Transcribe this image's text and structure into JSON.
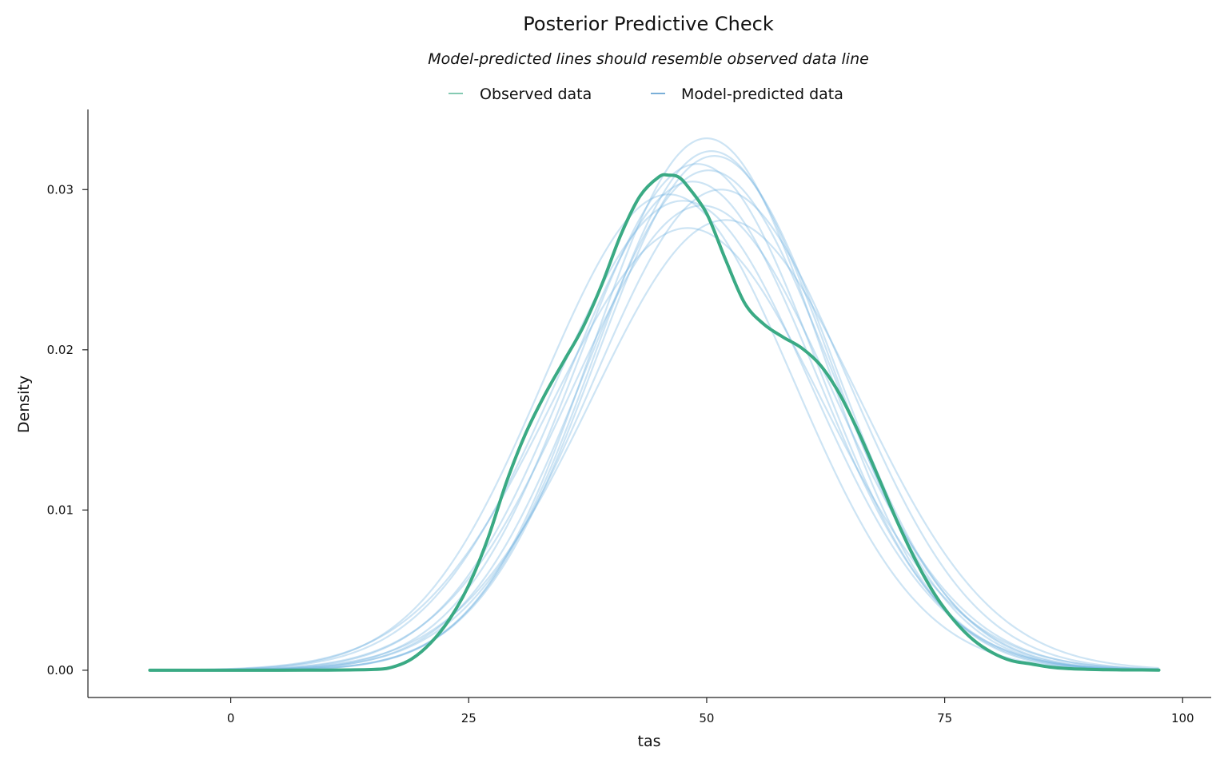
{
  "chart_data": {
    "type": "line",
    "title": "Posterior Predictive Check",
    "subtitle": "Model-predicted lines should resemble observed data line",
    "xlabel": "tas",
    "ylabel": "Density",
    "xlim": [
      -15,
      103
    ],
    "ylim": [
      -0.0017,
      0.035
    ],
    "xticks": [
      0,
      25,
      50,
      75,
      100
    ],
    "xtick_labels": [
      "0",
      "25",
      "50",
      "75",
      "100"
    ],
    "yticks": [
      0.0,
      0.01,
      0.02,
      0.03
    ],
    "ytick_labels": [
      "0.00",
      "0.01",
      "0.02",
      "0.03"
    ],
    "grid": false,
    "legend_position": "top-center",
    "legend": [
      {
        "label": "Observed data",
        "color": "#3aaa84"
      },
      {
        "label": "Model-predicted data",
        "color": "#2b7fc0"
      }
    ],
    "observed": {
      "name": "Observed data",
      "color": "#3aaa84",
      "x": [
        -8.5,
        0,
        5,
        10,
        15,
        17,
        19,
        21,
        23,
        25,
        27,
        29,
        31,
        33,
        35,
        37,
        39,
        41,
        43,
        45,
        46,
        47,
        48,
        50,
        52,
        54,
        56,
        58,
        60,
        62,
        64,
        66,
        68,
        70,
        72,
        74,
        76,
        78,
        80,
        82,
        84,
        86,
        88,
        90,
        92,
        95,
        97.5
      ],
      "y": [
        0.0,
        0.0,
        0.0,
        1e-05,
        5e-05,
        0.0002,
        0.0007,
        0.0017,
        0.0032,
        0.0053,
        0.0082,
        0.0118,
        0.0148,
        0.0172,
        0.0193,
        0.0214,
        0.0241,
        0.0272,
        0.0296,
        0.0308,
        0.0309,
        0.0308,
        0.0302,
        0.0285,
        0.0256,
        0.0229,
        0.0216,
        0.0208,
        0.0201,
        0.019,
        0.0172,
        0.0148,
        0.0121,
        0.0093,
        0.0068,
        0.0047,
        0.0031,
        0.0019,
        0.0011,
        0.0006,
        0.0004,
        0.0002,
        0.0001,
        6e-05,
        3e-05,
        2e-05,
        1e-05
      ]
    },
    "predicted": {
      "name": "Model-predicted data",
      "color": "#6fb3df",
      "draws": [
        {
          "mu": 50.0,
          "sigma": 12.0,
          "amp": 0.0332
        },
        {
          "mu": 50.5,
          "sigma": 12.3,
          "amp": 0.0324
        },
        {
          "mu": 49.0,
          "sigma": 12.6,
          "amp": 0.0316
        },
        {
          "mu": 50.8,
          "sigma": 12.4,
          "amp": 0.0321
        },
        {
          "mu": 48.5,
          "sigma": 13.0,
          "amp": 0.0305
        },
        {
          "mu": 51.5,
          "sigma": 13.3,
          "amp": 0.03
        },
        {
          "mu": 47.5,
          "sigma": 13.5,
          "amp": 0.0293
        },
        {
          "mu": 49.5,
          "sigma": 13.6,
          "amp": 0.029
        },
        {
          "mu": 52.0,
          "sigma": 14.0,
          "amp": 0.0281
        },
        {
          "mu": 46.0,
          "sigma": 13.2,
          "amp": 0.0297
        },
        {
          "mu": 50.2,
          "sigma": 12.8,
          "amp": 0.0312
        },
        {
          "mu": 48.0,
          "sigma": 14.2,
          "amp": 0.0276
        }
      ]
    }
  }
}
